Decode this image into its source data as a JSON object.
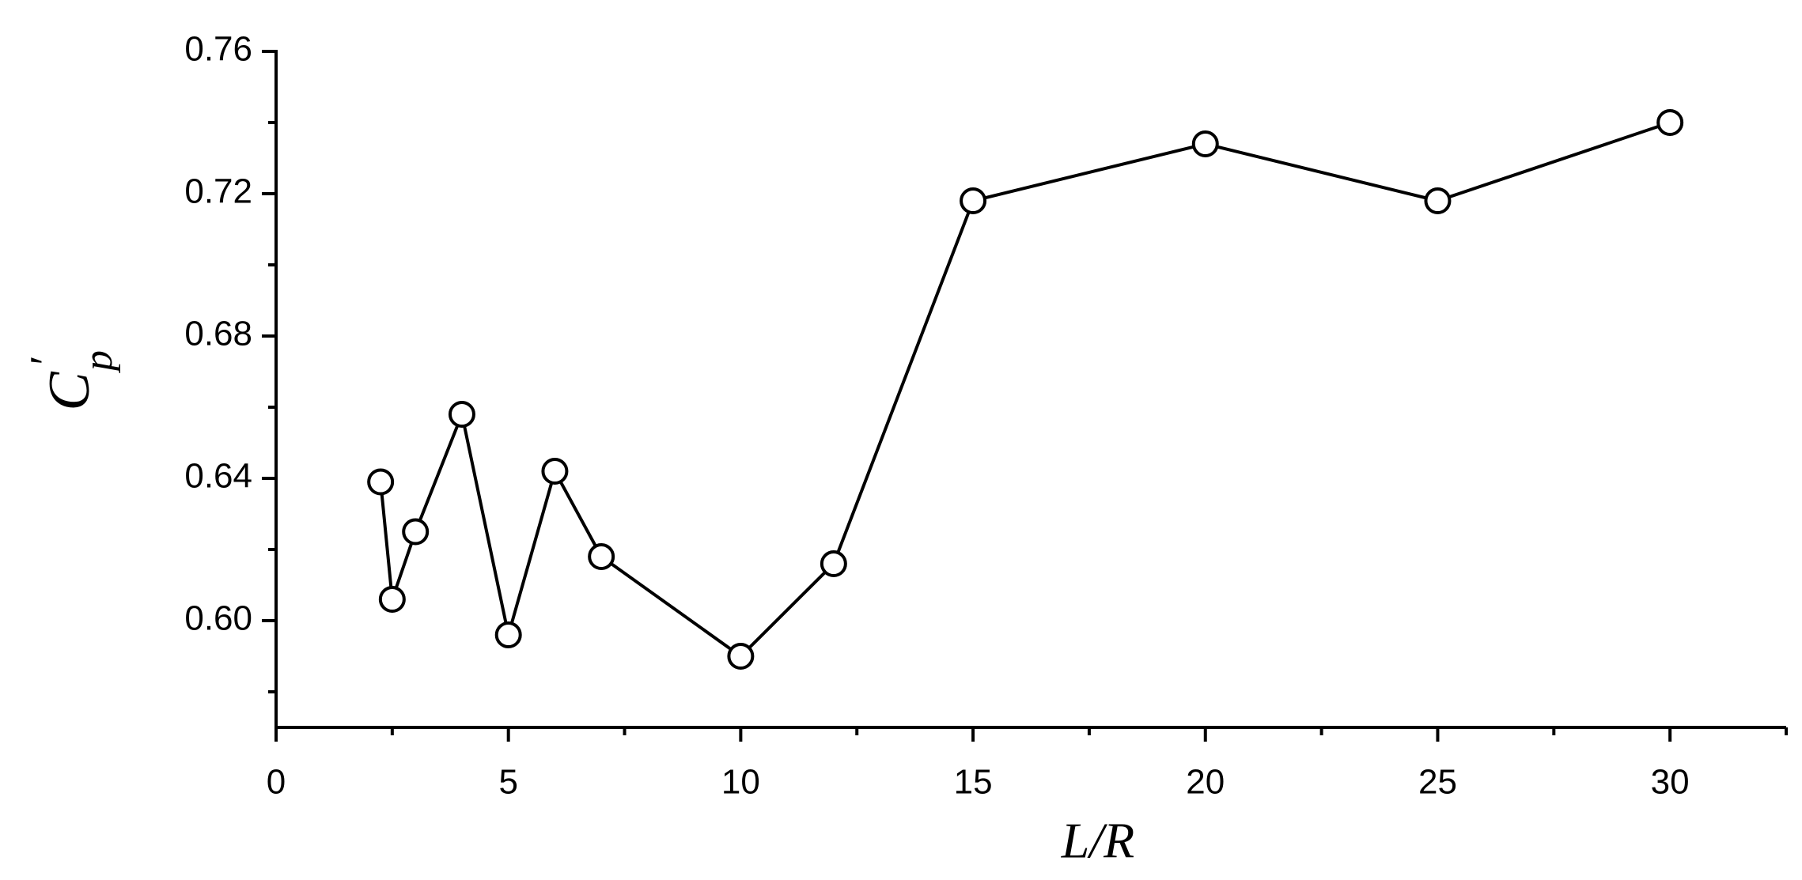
{
  "chart_data": {
    "type": "line",
    "xlabel": "L/R",
    "ylabel": "C",
    "ylabel_superscript": "′",
    "ylabel_subscript": "p",
    "x": [
      2.25,
      2.5,
      3,
      4,
      5,
      6,
      7,
      10,
      12,
      15,
      20,
      25,
      30
    ],
    "series": [
      {
        "color": "#000000",
        "marker": "circle",
        "values": [
          0.639,
          0.606,
          0.625,
          0.658,
          0.596,
          0.642,
          0.618,
          0.59,
          0.616,
          0.718,
          0.734,
          0.718,
          0.74
        ]
      }
    ],
    "xlim": [
      0,
      32.5
    ],
    "xticks": [
      0,
      5,
      10,
      15,
      20,
      25,
      30
    ],
    "ylim": [
      0.57,
      0.76
    ],
    "yticks": [
      {
        "value": 0.6,
        "label": "0.60"
      },
      {
        "value": 0.64,
        "label": "0.64"
      },
      {
        "value": 0.68,
        "label": "0.68"
      },
      {
        "value": 0.72,
        "label": "0.72"
      },
      {
        "value": 0.76,
        "label": "0.76"
      }
    ],
    "grid": false
  }
}
